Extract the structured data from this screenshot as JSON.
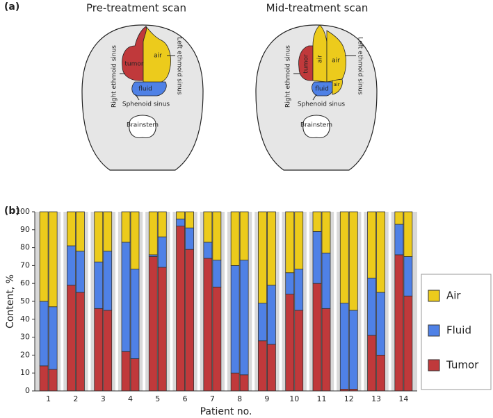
{
  "panel_a": {
    "label": "(a)",
    "scans": [
      {
        "title": "Pre-treatment scan",
        "regions": [
          "tumor",
          "air",
          "fluid"
        ],
        "anatomy": [
          "Right ethmoid sinus",
          "Left ethmoid sinus",
          "Sphenoid sinus",
          "Brainstem"
        ]
      },
      {
        "title": "Mid-treatment scan",
        "regions": [
          "tumor",
          "air",
          "air",
          "fluid",
          "air"
        ],
        "anatomy": [
          "Right ethmoid sinus",
          "Left ethmoid sinus",
          "Sphenoid sinus",
          "Brainstem"
        ]
      }
    ]
  },
  "chart_data": {
    "type": "bar",
    "stacked": true,
    "label": "(b)",
    "xlabel": "Patient no.",
    "ylabel": "Content, %",
    "categories": [
      "1",
      "2",
      "3",
      "4",
      "5",
      "6",
      "7",
      "8",
      "9",
      "10",
      "11",
      "12",
      "13",
      "14"
    ],
    "series": [
      {
        "name": "Tumor",
        "color": "#c0393b",
        "values": [
          [
            14,
            12
          ],
          [
            59,
            55
          ],
          [
            46,
            45
          ],
          [
            22,
            18
          ],
          [
            75,
            69
          ],
          [
            92,
            79
          ],
          [
            74,
            58
          ],
          [
            10,
            9
          ],
          [
            28,
            26
          ],
          [
            54,
            45
          ],
          [
            60,
            46
          ],
          [
            1,
            1
          ],
          [
            31,
            20
          ],
          [
            76,
            53
          ]
        ]
      },
      {
        "name": "Fluid",
        "color": "#4f81e6",
        "values": [
          [
            36,
            35
          ],
          [
            22,
            23
          ],
          [
            26,
            33
          ],
          [
            61,
            50
          ],
          [
            1,
            17
          ],
          [
            4,
            12
          ],
          [
            9,
            15
          ],
          [
            60,
            64
          ],
          [
            21,
            33
          ],
          [
            12,
            23
          ],
          [
            29,
            31
          ],
          [
            48,
            44
          ],
          [
            32,
            35
          ],
          [
            17,
            22
          ]
        ]
      },
      {
        "name": "Air",
        "color": "#eccb1c",
        "values": [
          [
            50,
            53
          ],
          [
            19,
            22
          ],
          [
            28,
            22
          ],
          [
            17,
            32
          ],
          [
            24,
            14
          ],
          [
            4,
            9
          ],
          [
            17,
            27
          ],
          [
            30,
            27
          ],
          [
            51,
            41
          ],
          [
            34,
            32
          ],
          [
            11,
            23
          ],
          [
            51,
            55
          ],
          [
            37,
            45
          ],
          [
            7,
            25
          ]
        ]
      }
    ],
    "ylim": [
      0,
      100
    ],
    "yticks": [
      0,
      10,
      20,
      30,
      40,
      50,
      60,
      70,
      80,
      90,
      100
    ],
    "legend": "right"
  }
}
